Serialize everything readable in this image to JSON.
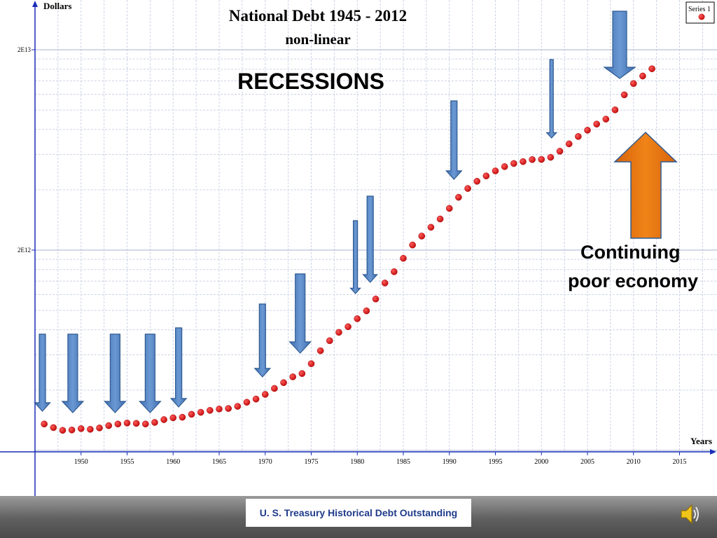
{
  "chart_data": {
    "type": "scatter",
    "title": "National Debt 1945 - 2012",
    "subtitle": "non-linear",
    "xlabel": "Years",
    "ylabel": "Dollars",
    "y_scale": "log",
    "xlim": [
      1942,
      2018
    ],
    "ylim": [
      200000000000,
      30000000000000
    ],
    "y_tick_labels": [
      "2E12",
      "2E13"
    ],
    "x_ticks": [
      1950,
      1955,
      1960,
      1965,
      1970,
      1975,
      1980,
      1985,
      1990,
      1995,
      2000,
      2005,
      2010,
      2015
    ],
    "grid": true,
    "legend": {
      "label": "Series 1",
      "position": "top-right"
    },
    "marker_color": "#d81616",
    "series": [
      {
        "name": "Series 1",
        "x": [
          1946,
          1947,
          1948,
          1949,
          1950,
          1951,
          1952,
          1953,
          1954,
          1955,
          1956,
          1957,
          1958,
          1959,
          1960,
          1961,
          1962,
          1963,
          1964,
          1965,
          1966,
          1967,
          1968,
          1969,
          1970,
          1971,
          1972,
          1973,
          1974,
          1975,
          1976,
          1977,
          1978,
          1979,
          1980,
          1981,
          1982,
          1983,
          1984,
          1985,
          1986,
          1987,
          1988,
          1989,
          1990,
          1991,
          1992,
          1993,
          1994,
          1995,
          1996,
          1997,
          1998,
          1999,
          2000,
          2001,
          2002,
          2003,
          2004,
          2005,
          2006,
          2007,
          2008,
          2009,
          2010,
          2011,
          2012
        ],
        "y": [
          271000000000,
          260000000000,
          252000000000,
          253000000000,
          257000000000,
          255000000000,
          259000000000,
          266000000000,
          271000000000,
          274000000000,
          273000000000,
          271000000000,
          276000000000,
          285000000000,
          291000000000,
          293000000000,
          303000000000,
          310000000000,
          317000000000,
          322000000000,
          324000000000,
          332000000000,
          348000000000,
          361000000000,
          381000000000,
          408000000000,
          436000000000,
          466000000000,
          484000000000,
          542000000000,
          629000000000,
          706000000000,
          777000000000,
          829000000000,
          909000000000,
          995000000000,
          1140000000000,
          1370000000000,
          1560000000000,
          1820000000000,
          2120000000000,
          2350000000000,
          2600000000000,
          2860000000000,
          3230000000000,
          3670000000000,
          4060000000000,
          4410000000000,
          4690000000000,
          4970000000000,
          5220000000000,
          5410000000000,
          5530000000000,
          5660000000000,
          5670000000000,
          5810000000000,
          6230000000000,
          6780000000000,
          7380000000000,
          7930000000000,
          8510000000000,
          9010000000000,
          10020000000000,
          11910000000000,
          13560000000000,
          14790000000000,
          16070000000000
        ]
      }
    ],
    "annotations": [
      "RECESSIONS",
      "Continuing poor economy"
    ],
    "recession_arrow_years": [
      1945.8,
      1949.1,
      1953.7,
      1957.5,
      1960.6,
      1969.7,
      1973.8,
      1979.8,
      1981.4,
      1990.5,
      2001.1,
      2008.5
    ],
    "arrow_color": "#4f81bd",
    "up_arrow_color": "#e36c09"
  },
  "footer": {
    "source_label": "U. S. Treasury Historical Debt Outstanding",
    "speaker_icon": "speaker-icon"
  }
}
